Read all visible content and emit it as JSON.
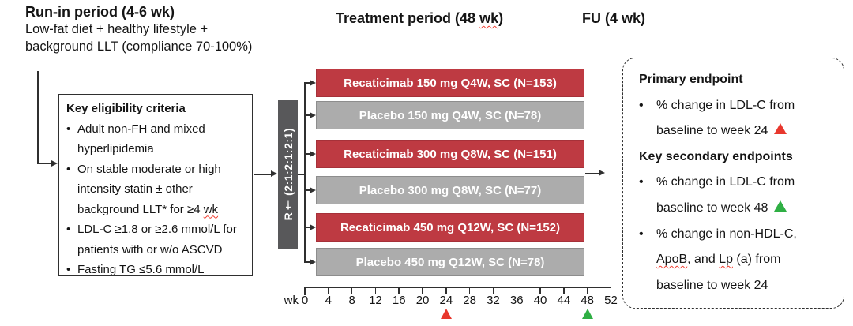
{
  "colors": {
    "arm_red": "#BE3A42",
    "arm_red_border": "#A63139",
    "arm_gray": "#ACACAC",
    "arm_gray_border": "#8D8D8D",
    "randomization_gray": "#58585A",
    "marker_red": "#E8372D",
    "marker_green": "#2FAF44",
    "squiggle_red": "#F03B2E"
  },
  "run_in": {
    "title": "Run-in period (4-6 wk)",
    "lines": [
      "Low-fat diet + healthy lifestyle +",
      "background LLT (compliance 70-100%)"
    ]
  },
  "treatment_header": {
    "pre": "Treatment period (48 ",
    "wk": "wk",
    "post": ")"
  },
  "fu_header": {
    "title": "FU (4 wk)"
  },
  "eligibility": {
    "bullet_char": "•",
    "title": "Key eligibility criteria",
    "lines": [
      {
        "text": "Adult non-FH and mixed"
      },
      {
        "text": "hyperlipidemia"
      },
      {
        "text": "On stable moderate or high"
      },
      {
        "text": "intensity statin ± other"
      },
      {
        "pre": "background LLT* for ≥4 ",
        "squiggle": "wk"
      },
      {
        "text": "LDL-C ≥1.8 or ≥2.6 mmol/L for"
      },
      {
        "text": "patients with or w/o ASCVD"
      },
      {
        "text": "Fasting TG ≤5.6 mmol/L"
      }
    ]
  },
  "randomization": {
    "label": "R† (2:1:2:1:2:1)"
  },
  "arms": [
    {
      "type": "treatment",
      "label": "Recaticimab 150 mg Q4W, SC (N=153)"
    },
    {
      "type": "placebo",
      "label": "Placebo 150 mg Q4W, SC (N=78)"
    },
    {
      "type": "treatment",
      "label": "Recaticimab 300 mg Q8W, SC (N=151)"
    },
    {
      "type": "placebo",
      "label": "Placebo 300 mg Q8W, SC (N=77)"
    },
    {
      "type": "treatment",
      "label": "Recaticimab 450 mg Q12W, SC (N=152)"
    },
    {
      "type": "placebo",
      "label": "Placebo 450 mg Q12W, SC (N=78)"
    }
  ],
  "axis": {
    "unit_label": "wk",
    "ticks": [
      "0",
      "4",
      "8",
      "12",
      "16",
      "20",
      "24",
      "28",
      "32",
      "36",
      "40",
      "44",
      "48",
      "52"
    ],
    "markers": [
      {
        "tick": "24",
        "color": "marker_red",
        "name": "week-24-red-triangle-icon"
      },
      {
        "tick": "48",
        "color": "marker_green",
        "name": "week-48-green-triangle-icon"
      }
    ]
  },
  "endpoints": {
    "bullet_char": "•",
    "primary_heading": "Primary endpoint",
    "secondary_heading": "Key secondary endpoints",
    "item1_line1": "% change in LDL-C from",
    "item1_line2": "baseline to week 24",
    "item2_line1": "% change in LDL-C from",
    "item2_line2": "baseline to week 48",
    "item3_line1": "% change in non-HDL-C,",
    "item3_line2_segments": [
      "ApoB",
      ", and ",
      "Lp",
      " (a) from"
    ],
    "item3_line3": "baseline to week 24"
  }
}
